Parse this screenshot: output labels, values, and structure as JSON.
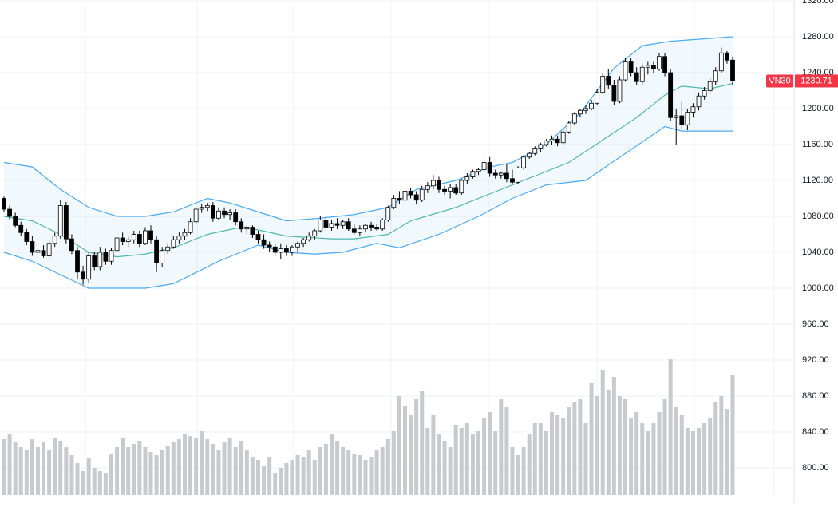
{
  "chart_data": {
    "type": "candlestick",
    "symbol": "VN30",
    "ylim": [
      780,
      1320
    ],
    "yticks": [
      {
        "value": 800,
        "label": "800.00"
      },
      {
        "value": 840,
        "label": "840.00"
      },
      {
        "value": 880,
        "label": "880.00"
      },
      {
        "value": 920,
        "label": "920.00"
      },
      {
        "value": 960,
        "label": "960.00"
      },
      {
        "value": 1000,
        "label": "1000.00"
      },
      {
        "value": 1040,
        "label": "1040.00"
      },
      {
        "value": 1080,
        "label": "1080.00"
      },
      {
        "value": 1120,
        "label": "1120.00"
      },
      {
        "value": 1160,
        "label": "1160.00"
      },
      {
        "value": 1200,
        "label": "1200.00"
      },
      {
        "value": 1240,
        "label": "1240.00"
      },
      {
        "value": 1280,
        "label": "1280.00"
      },
      {
        "value": 1320,
        "label": "1320.00"
      }
    ],
    "grid": true,
    "up_color": "#ffffff",
    "down_color": "#000000",
    "volume_color": "#c9cacf",
    "volume_lim": [
      0,
      100
    ],
    "candles": [
      [
        1100,
        1102,
        1085,
        1088
      ],
      [
        1088,
        1092,
        1076,
        1080
      ],
      [
        1080,
        1084,
        1068,
        1070
      ],
      [
        1070,
        1074,
        1058,
        1062
      ],
      [
        1062,
        1066,
        1048,
        1052
      ],
      [
        1052,
        1058,
        1036,
        1040
      ],
      [
        1040,
        1046,
        1030,
        1042
      ],
      [
        1042,
        1048,
        1034,
        1036
      ],
      [
        1036,
        1054,
        1032,
        1050
      ],
      [
        1050,
        1062,
        1046,
        1058
      ],
      [
        1058,
        1098,
        1055,
        1092
      ],
      [
        1092,
        1096,
        1050,
        1055
      ],
      [
        1055,
        1060,
        1038,
        1042
      ],
      [
        1042,
        1046,
        1010,
        1018
      ],
      [
        1018,
        1025,
        1004,
        1010
      ],
      [
        1010,
        1040,
        1006,
        1036
      ],
      [
        1036,
        1040,
        1020,
        1024
      ],
      [
        1024,
        1046,
        1020,
        1040
      ],
      [
        1040,
        1044,
        1026,
        1030
      ],
      [
        1030,
        1045,
        1026,
        1042
      ],
      [
        1042,
        1060,
        1040,
        1056
      ],
      [
        1056,
        1062,
        1048,
        1052
      ],
      [
        1052,
        1058,
        1046,
        1054
      ],
      [
        1054,
        1064,
        1050,
        1060
      ],
      [
        1060,
        1064,
        1046,
        1050
      ],
      [
        1050,
        1068,
        1048,
        1064
      ],
      [
        1064,
        1070,
        1050,
        1054
      ],
      [
        1054,
        1058,
        1018,
        1028
      ],
      [
        1028,
        1046,
        1024,
        1042
      ],
      [
        1042,
        1050,
        1038,
        1046
      ],
      [
        1046,
        1058,
        1044,
        1054
      ],
      [
        1054,
        1062,
        1050,
        1058
      ],
      [
        1058,
        1066,
        1054,
        1062
      ],
      [
        1062,
        1078,
        1060,
        1074
      ],
      [
        1074,
        1090,
        1072,
        1088
      ],
      [
        1088,
        1094,
        1084,
        1090
      ],
      [
        1090,
        1095,
        1086,
        1092
      ],
      [
        1092,
        1096,
        1074,
        1078
      ],
      [
        1078,
        1090,
        1076,
        1086
      ],
      [
        1086,
        1090,
        1078,
        1082
      ],
      [
        1082,
        1088,
        1076,
        1084
      ],
      [
        1084,
        1088,
        1070,
        1074
      ],
      [
        1074,
        1078,
        1062,
        1066
      ],
      [
        1066,
        1070,
        1060,
        1068
      ],
      [
        1068,
        1070,
        1056,
        1060
      ],
      [
        1060,
        1064,
        1050,
        1054
      ],
      [
        1054,
        1060,
        1044,
        1048
      ],
      [
        1048,
        1052,
        1040,
        1046
      ],
      [
        1046,
        1050,
        1036,
        1040
      ],
      [
        1040,
        1050,
        1032,
        1044
      ],
      [
        1044,
        1048,
        1036,
        1040
      ],
      [
        1040,
        1048,
        1036,
        1046
      ],
      [
        1046,
        1052,
        1040,
        1050
      ],
      [
        1050,
        1056,
        1046,
        1054
      ],
      [
        1054,
        1062,
        1052,
        1058
      ],
      [
        1058,
        1066,
        1054,
        1064
      ],
      [
        1064,
        1080,
        1062,
        1076
      ],
      [
        1076,
        1080,
        1064,
        1068
      ],
      [
        1068,
        1076,
        1064,
        1072
      ],
      [
        1072,
        1078,
        1066,
        1070
      ],
      [
        1070,
        1076,
        1066,
        1074
      ],
      [
        1074,
        1078,
        1064,
        1066
      ],
      [
        1066,
        1072,
        1060,
        1062
      ],
      [
        1062,
        1070,
        1058,
        1066
      ],
      [
        1066,
        1072,
        1062,
        1070
      ],
      [
        1070,
        1074,
        1064,
        1068
      ],
      [
        1068,
        1072,
        1064,
        1066
      ],
      [
        1066,
        1078,
        1064,
        1076
      ],
      [
        1076,
        1092,
        1074,
        1090
      ],
      [
        1090,
        1104,
        1088,
        1100
      ],
      [
        1100,
        1108,
        1094,
        1098
      ],
      [
        1098,
        1112,
        1096,
        1108
      ],
      [
        1108,
        1112,
        1100,
        1104
      ],
      [
        1104,
        1108,
        1094,
        1098
      ],
      [
        1098,
        1114,
        1096,
        1110
      ],
      [
        1110,
        1118,
        1106,
        1114
      ],
      [
        1114,
        1126,
        1110,
        1120
      ],
      [
        1120,
        1124,
        1106,
        1110
      ],
      [
        1110,
        1114,
        1104,
        1108
      ],
      [
        1108,
        1116,
        1100,
        1112
      ],
      [
        1112,
        1116,
        1104,
        1106
      ],
      [
        1106,
        1122,
        1104,
        1120
      ],
      [
        1120,
        1128,
        1116,
        1124
      ],
      [
        1124,
        1132,
        1122,
        1130
      ],
      [
        1130,
        1134,
        1126,
        1132
      ],
      [
        1132,
        1144,
        1130,
        1140
      ],
      [
        1140,
        1146,
        1124,
        1128
      ],
      [
        1128,
        1132,
        1122,
        1126
      ],
      [
        1126,
        1130,
        1122,
        1128
      ],
      [
        1128,
        1138,
        1118,
        1122
      ],
      [
        1122,
        1132,
        1116,
        1118
      ],
      [
        1118,
        1136,
        1116,
        1134
      ],
      [
        1134,
        1148,
        1132,
        1146
      ],
      [
        1146,
        1152,
        1144,
        1150
      ],
      [
        1150,
        1158,
        1148,
        1156
      ],
      [
        1156,
        1162,
        1152,
        1160
      ],
      [
        1160,
        1166,
        1158,
        1164
      ],
      [
        1164,
        1170,
        1160,
        1166
      ],
      [
        1166,
        1170,
        1158,
        1162
      ],
      [
        1162,
        1176,
        1160,
        1174
      ],
      [
        1174,
        1186,
        1172,
        1184
      ],
      [
        1184,
        1196,
        1182,
        1194
      ],
      [
        1194,
        1200,
        1190,
        1198
      ],
      [
        1198,
        1204,
        1194,
        1200
      ],
      [
        1200,
        1210,
        1198,
        1206
      ],
      [
        1206,
        1222,
        1204,
        1218
      ],
      [
        1218,
        1240,
        1216,
        1236
      ],
      [
        1236,
        1244,
        1222,
        1226
      ],
      [
        1226,
        1232,
        1204,
        1208
      ],
      [
        1208,
        1236,
        1206,
        1232
      ],
      [
        1232,
        1256,
        1230,
        1252
      ],
      [
        1252,
        1256,
        1236,
        1240
      ],
      [
        1240,
        1246,
        1226,
        1230
      ],
      [
        1230,
        1250,
        1226,
        1246
      ],
      [
        1246,
        1252,
        1238,
        1248
      ],
      [
        1248,
        1252,
        1240,
        1244
      ],
      [
        1244,
        1262,
        1242,
        1258
      ],
      [
        1258,
        1262,
        1236,
        1240
      ],
      [
        1240,
        1244,
        1186,
        1190
      ],
      [
        1190,
        1200,
        1160,
        1192
      ],
      [
        1192,
        1208,
        1178,
        1182
      ],
      [
        1182,
        1200,
        1176,
        1196
      ],
      [
        1196,
        1206,
        1190,
        1202
      ],
      [
        1202,
        1218,
        1198,
        1214
      ],
      [
        1214,
        1224,
        1210,
        1220
      ],
      [
        1220,
        1234,
        1216,
        1230
      ],
      [
        1230,
        1246,
        1226,
        1242
      ],
      [
        1242,
        1268,
        1240,
        1262
      ],
      [
        1262,
        1264,
        1250,
        1254
      ],
      [
        1254,
        1258,
        1226,
        1230.71
      ]
    ],
    "volume": [
      35,
      38,
      33,
      30,
      28,
      35,
      30,
      33,
      28,
      36,
      34,
      30,
      25,
      20,
      15,
      23,
      17,
      15,
      14,
      26,
      30,
      36,
      30,
      32,
      34,
      30,
      27,
      25,
      28,
      31,
      33,
      35,
      38,
      37,
      36,
      40,
      35,
      32,
      28,
      33,
      36,
      30,
      34,
      28,
      24,
      22,
      18,
      24,
      14,
      17,
      20,
      22,
      25,
      24,
      28,
      22,
      30,
      32,
      38,
      34,
      30,
      28,
      26,
      25,
      22,
      24,
      28,
      30,
      35,
      40,
      62,
      56,
      50,
      60,
      65,
      42,
      50,
      38,
      34,
      30,
      44,
      42,
      45,
      38,
      40,
      48,
      52,
      40,
      60,
      55,
      30,
      25,
      30,
      38,
      45,
      45,
      40,
      52,
      50,
      48,
      55,
      58,
      60,
      45,
      70,
      62,
      78,
      66,
      74,
      62,
      60,
      48,
      52,
      45,
      40,
      45,
      52,
      60,
      85,
      55,
      50,
      42,
      40,
      42,
      45,
      48,
      58,
      62,
      54,
      75
    ],
    "bands": [
      {
        "color": "#2196f3",
        "x": [
          0,
          5,
          10,
          15,
          20,
          25,
          30,
          36,
          40,
          45,
          50,
          56,
          62,
          68,
          73,
          80,
          86,
          90,
          96,
          102,
          108,
          113,
          118,
          129
        ],
        "values": [
          1140,
          1135,
          1110,
          1090,
          1080,
          1080,
          1085,
          1100,
          1095,
          1085,
          1075,
          1078,
          1082,
          1090,
          1110,
          1120,
          1135,
          1140,
          1160,
          1195,
          1245,
          1270,
          1275,
          1280
        ]
      },
      {
        "color": "#26a69a",
        "x": [
          0,
          5,
          10,
          15,
          20,
          25,
          30,
          36,
          42,
          45,
          50,
          58,
          62,
          68,
          72,
          80,
          88,
          92,
          100,
          106,
          112,
          117,
          120,
          125,
          129
        ],
        "values": [
          1080,
          1075,
          1060,
          1040,
          1035,
          1038,
          1045,
          1060,
          1068,
          1065,
          1058,
          1055,
          1055,
          1060,
          1075,
          1090,
          1110,
          1120,
          1140,
          1165,
          1190,
          1215,
          1225,
          1222,
          1228
        ]
      },
      {
        "color": "#2196f3",
        "x": [
          0,
          5,
          10,
          15,
          20,
          25,
          30,
          38,
          45,
          50,
          55,
          60,
          66,
          70,
          77,
          84,
          90,
          96,
          103,
          110,
          117,
          120,
          129
        ],
        "values": [
          1040,
          1030,
          1015,
          1000,
          1000,
          1000,
          1005,
          1030,
          1048,
          1040,
          1038,
          1040,
          1050,
          1045,
          1060,
          1080,
          1100,
          1115,
          1120,
          1150,
          1180,
          1175,
          1175
        ]
      }
    ]
  }
}
